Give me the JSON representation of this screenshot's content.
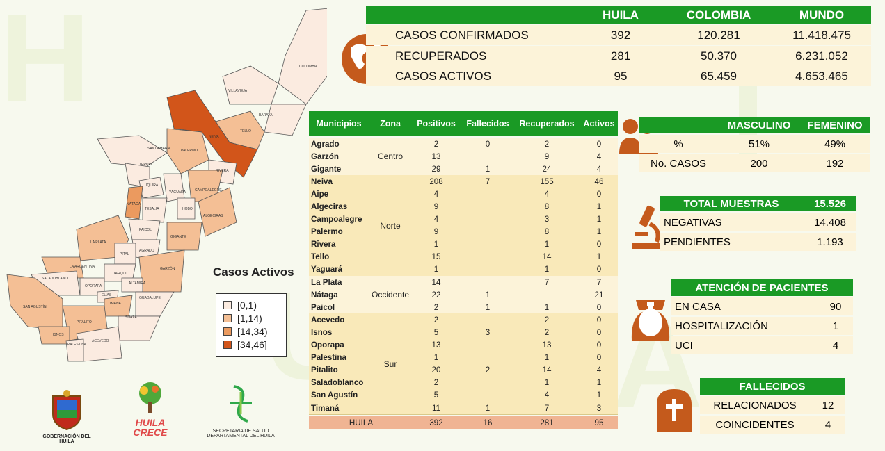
{
  "summary": {
    "headers": [
      "",
      "HUILA",
      "COLOMBIA",
      "MUNDO"
    ],
    "rows": [
      {
        "label": "CASOS CONFIRMADOS",
        "huila": "392",
        "colombia": "120.281",
        "mundo": "11.418.475"
      },
      {
        "label": "RECUPERADOS",
        "huila": "281",
        "colombia": "50.370",
        "mundo": "6.231.052"
      },
      {
        "label": "CASOS ACTIVOS",
        "huila": "95",
        "colombia": "65.459",
        "mundo": "4.653.465"
      }
    ]
  },
  "municipios_table": {
    "headers": [
      "Municipios",
      "Zona",
      "Positivos",
      "Fallecidos",
      "Recuperados",
      "Activos"
    ],
    "zones": [
      {
        "zona": "Centro",
        "rows": [
          {
            "m": "Agrado",
            "p": "2",
            "f": "0",
            "r": "2",
            "a": "0"
          },
          {
            "m": "Garzón",
            "p": "13",
            "f": "",
            "r": "9",
            "a": "4"
          },
          {
            "m": "Gigante",
            "p": "29",
            "f": "1",
            "r": "24",
            "a": "4"
          }
        ]
      },
      {
        "zona": "Norte",
        "rows": [
          {
            "m": "Neiva",
            "p": "208",
            "f": "7",
            "r": "155",
            "a": "46"
          },
          {
            "m": "Aipe",
            "p": "4",
            "f": "",
            "r": "4",
            "a": "0"
          },
          {
            "m": "Algeciras",
            "p": "9",
            "f": "",
            "r": "8",
            "a": "1"
          },
          {
            "m": "Campoalegre",
            "p": "4",
            "f": "",
            "r": "3",
            "a": "1"
          },
          {
            "m": "Palermo",
            "p": "9",
            "f": "",
            "r": "8",
            "a": "1"
          },
          {
            "m": "Rivera",
            "p": "1",
            "f": "",
            "r": "1",
            "a": "0"
          },
          {
            "m": "Tello",
            "p": "15",
            "f": "",
            "r": "14",
            "a": "1"
          },
          {
            "m": "Yaguará",
            "p": "1",
            "f": "",
            "r": "1",
            "a": "0"
          }
        ]
      },
      {
        "zona": "Occidente",
        "rows": [
          {
            "m": "La Plata",
            "p": "14",
            "f": "",
            "r": "7",
            "a": "7"
          },
          {
            "m": "Nátaga",
            "p": "22",
            "f": "1",
            "r": "",
            "a": "21"
          },
          {
            "m": "Paicol",
            "p": "2",
            "f": "1",
            "r": "1",
            "a": "0"
          }
        ]
      },
      {
        "zona": "Sur",
        "rows": [
          {
            "m": "Acevedo",
            "p": "2",
            "f": "",
            "r": "2",
            "a": "0"
          },
          {
            "m": "Isnos",
            "p": "5",
            "f": "3",
            "r": "2",
            "a": "0"
          },
          {
            "m": "Oporapa",
            "p": "13",
            "f": "",
            "r": "13",
            "a": "0"
          },
          {
            "m": "Palestina",
            "p": "1",
            "f": "",
            "r": "1",
            "a": "0"
          },
          {
            "m": "Pitalito",
            "p": "20",
            "f": "2",
            "r": "14",
            "a": "4"
          },
          {
            "m": "Saladoblanco",
            "p": "2",
            "f": "",
            "r": "1",
            "a": "1"
          },
          {
            "m": "San Agustín",
            "p": "5",
            "f": "",
            "r": "4",
            "a": "1"
          },
          {
            "m": "Timaná",
            "p": "11",
            "f": "1",
            "r": "7",
            "a": "3"
          }
        ]
      }
    ],
    "total": {
      "m": "HUILA",
      "p": "392",
      "f": "16",
      "r": "281",
      "a": "95"
    }
  },
  "gender": {
    "headers": [
      "MASCULINO",
      "FEMENINO"
    ],
    "rows": [
      {
        "label": "%",
        "m": "51%",
        "f": "49%"
      },
      {
        "label": "No. CASOS",
        "m": "200",
        "f": "192"
      }
    ]
  },
  "samples": {
    "title": "TOTAL MUESTRAS",
    "total": "15.526",
    "rows": [
      {
        "label": "NEGATIVAS",
        "value": "14.408"
      },
      {
        "label": "PENDIENTES",
        "value": "1.193"
      }
    ]
  },
  "attention": {
    "title": "ATENCIÓN  DE PACIENTES",
    "rows": [
      {
        "label": "EN CASA",
        "value": "90"
      },
      {
        "label": "HOSPITALIZACIÓN",
        "value": "1"
      },
      {
        "label": "UCI",
        "value": "4"
      }
    ]
  },
  "deaths": {
    "title": "FALLECIDOS",
    "rows": [
      {
        "label": "RELACIONADOS",
        "value": "12"
      },
      {
        "label": "COINCIDENTES",
        "value": "4"
      }
    ]
  },
  "map": {
    "legend_title": "Casos Activos",
    "legend": [
      {
        "label": "[0,1)",
        "color": "#fbebe0"
      },
      {
        "label": "[1,14)",
        "color": "#f4bf95"
      },
      {
        "label": "[14,34)",
        "color": "#eb9a5f"
      },
      {
        "label": "[34,46]",
        "color": "#d2551a"
      }
    ],
    "labels": [
      "COLOMBIA",
      "VILLAVIEJA",
      "BARAYA",
      "TELLO",
      "NEIVA",
      "SANTA MARÍA",
      "PALERMO",
      "TERUEL",
      "RIVERA",
      "IQUIRA",
      "YAGUARÁ",
      "CAMPOALEGRE",
      "NÁTAGA",
      "TESALIA",
      "HOBO",
      "ALGECIRAS",
      "PAICOL",
      "GIGANTE",
      "LA PLATA",
      "AGRADO",
      "PITAL",
      "LA ARGENTINA",
      "TARQUI",
      "GARZÓN",
      "SALADOBLANCO",
      "OPORAPA",
      "ALTAMIRA",
      "ELÍAS",
      "TIMANÁ",
      "GUADALUPE",
      "SAN AGUSTÍN",
      "SUAZA",
      "PITALITO",
      "ISNOS",
      "ACEVEDO",
      "PALESTINA"
    ]
  },
  "logos": {
    "gobernacion": "GOBERNACIÓN DEL HUILA",
    "huila_crece_1": "HUILA",
    "huila_crece_2": "CRECE",
    "secretaria_1": "SECRETARIA DE SALUD",
    "secretaria_2": "DEPARTAMENTAL DEL HUILA"
  }
}
